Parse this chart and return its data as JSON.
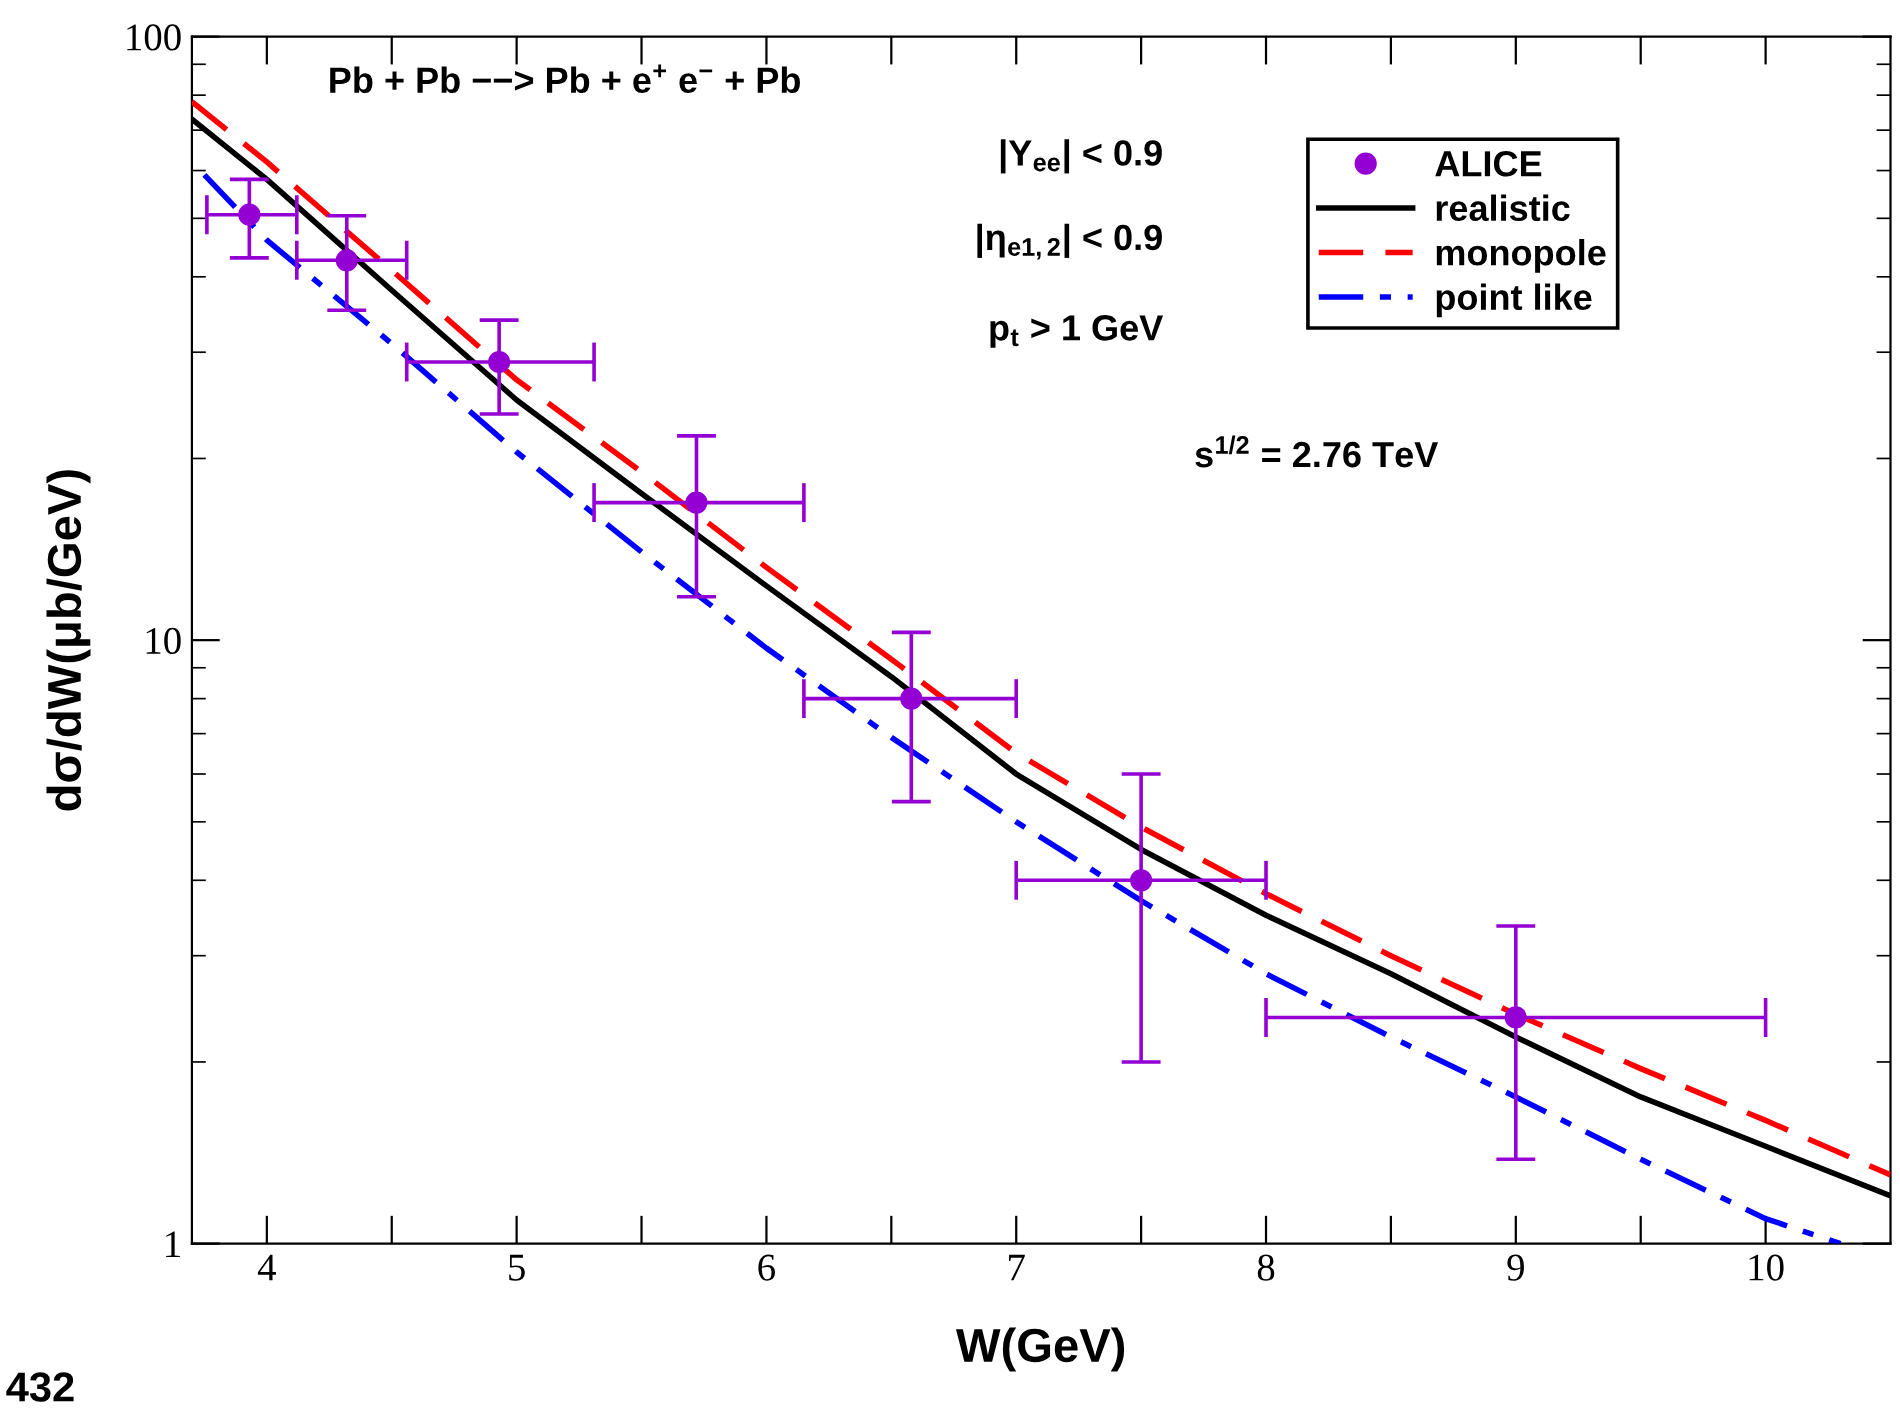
{
  "chart_data": {
    "type": "scatter",
    "xlabel": "W(GeV)",
    "ylabel": "dσ/dW(μb/GeV)",
    "log": "y",
    "xlim": [
      3.7,
      10.5
    ],
    "ylim": [
      1,
      100
    ],
    "xticks": [
      4,
      {
        "value": 4.5,
        "label": null
      },
      5,
      {
        "value": 5.5,
        "label": null
      },
      6,
      {
        "value": 6.5,
        "label": null
      },
      7,
      {
        "value": 7.5,
        "label": null
      },
      8,
      {
        "value": 8.5,
        "label": null
      },
      9,
      {
        "value": 9.5,
        "label": null
      },
      10
    ],
    "yticks": [
      1,
      10,
      100
    ],
    "grid": false,
    "legend": "top right",
    "series": [
      {
        "name": "ALICE",
        "color": "#9400d3",
        "marker": "circle",
        "x": [
          3.93,
          4.32,
          4.93,
          5.72,
          6.58,
          7.5,
          9.0
        ],
        "values": [
          50.7,
          42.6,
          28.9,
          16.9,
          8.0,
          4.0,
          2.37
        ],
        "errors": [
          [
            43,
            58
          ],
          [
            35.2,
            50.5
          ],
          [
            23.7,
            33.9
          ],
          [
            11.8,
            21.8
          ],
          [
            5.4,
            10.3
          ],
          [
            2.0,
            6.0
          ],
          [
            1.38,
            3.36
          ]
        ],
        "xerrors": [
          [
            3.76,
            4.12
          ],
          [
            4.12,
            4.56
          ],
          [
            4.56,
            5.31
          ],
          [
            5.31,
            6.15
          ],
          [
            6.15,
            7.0
          ],
          [
            7.0,
            8.0
          ],
          [
            8.0,
            10.0
          ]
        ]
      },
      {
        "name": "realistic",
        "type": "line",
        "color": "#000000",
        "line_style": "solid",
        "x": [
          3.7,
          4,
          4.5,
          5,
          5.5,
          6,
          6.5,
          7,
          7.5,
          8,
          8.5,
          9,
          9.5,
          10,
          10.5
        ],
        "values": [
          73,
          58,
          38,
          25,
          17.5,
          12.3,
          8.7,
          6.0,
          4.5,
          3.5,
          2.8,
          2.2,
          1.75,
          1.45,
          1.2
        ]
      },
      {
        "name": "monopole",
        "type": "line",
        "color": "#ff0000",
        "line_style": "dashed",
        "x": [
          3.7,
          4,
          4.5,
          5,
          5.5,
          6,
          6.5,
          7,
          7.5,
          8,
          8.5,
          9,
          9.5,
          10,
          10.5
        ],
        "values": [
          78,
          62,
          41,
          27,
          19,
          13.2,
          9.3,
          6.5,
          4.9,
          3.8,
          3.0,
          2.4,
          1.95,
          1.6,
          1.3
        ]
      },
      {
        "name": "point like",
        "type": "line",
        "color": "#0000ff",
        "line_style": "dashdot",
        "x": [
          3.75,
          4,
          4.5,
          5,
          5.5,
          6,
          6.5,
          7,
          7.5,
          8,
          8.5,
          9,
          9.5,
          10,
          10.3
        ],
        "values": [
          59,
          46,
          31,
          20.5,
          14,
          9.7,
          6.9,
          5.0,
          3.7,
          2.8,
          2.2,
          1.75,
          1.38,
          1.1,
          1.0
        ]
      }
    ],
    "annotations": [
      "Pb + Pb −−> Pb + e$^{+}$ e$^{−}$ + Pb",
      "|Y$_{ee}$| < 0.9",
      "|η$_{e1,2}$| < 0.9",
      "p$_{t}$ > 1 GeV",
      "s$^{1/2}$ = 2.76 TeV",
      "432"
    ]
  }
}
